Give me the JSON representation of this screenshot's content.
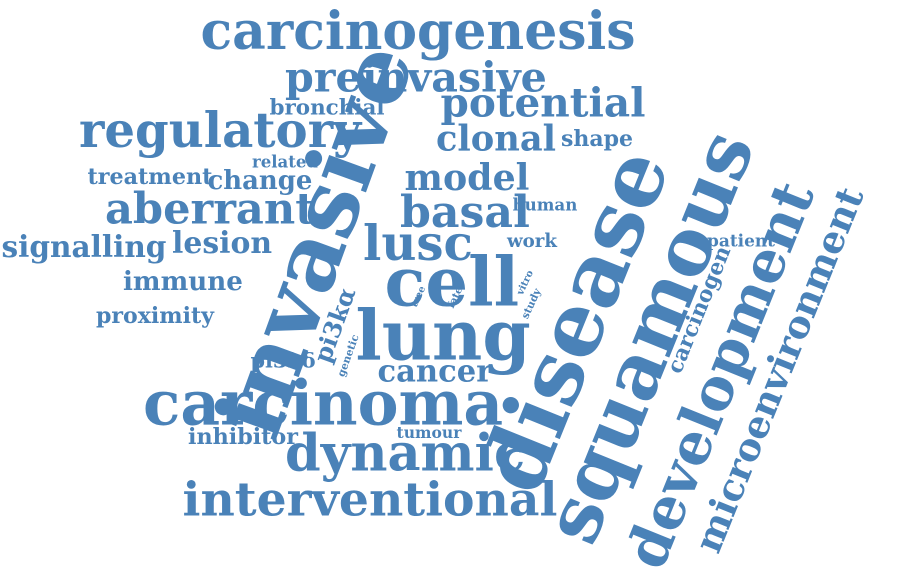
{
  "color": "#4a82b8",
  "words": [
    "carcinogenesis",
    "preinvasive",
    "potential",
    "bronchial",
    "regulatory",
    "clonal",
    "shape",
    "treatment",
    "related",
    "change",
    "model",
    "aberrant",
    "basal",
    "human",
    "signalling",
    "lesion",
    "lusc",
    "work",
    "patient",
    "immune",
    "cell",
    "tree",
    "fate",
    "vitro",
    "study",
    "proximity",
    "invasive",
    "pi3kα",
    "genetic",
    "pi3kδ",
    "lung",
    "cancer",
    "carcinoma",
    "inhibitor",
    "tumour",
    "dynamic",
    "interventional",
    "disease",
    "squamous",
    "carcinogen",
    "development",
    "microenvironment"
  ]
}
